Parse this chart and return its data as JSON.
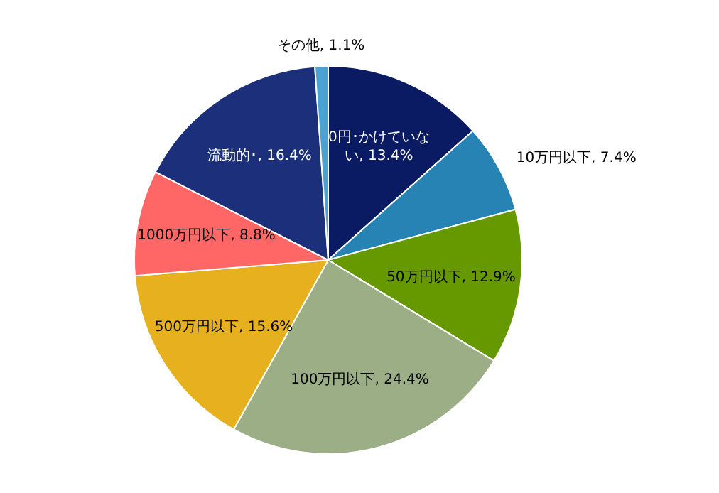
{
  "chart_data": {
    "type": "pie",
    "categories": [
      "0円･かけていない",
      "10万円以下",
      "50万円以下",
      "100万円以下",
      "500万円以下",
      "1000万円以下",
      "流動的･",
      "その他"
    ],
    "values": [
      13.4,
      7.4,
      12.9,
      24.4,
      15.6,
      8.8,
      16.4,
      1.1
    ],
    "value_labels": [
      "13.4%",
      "7.4%",
      "12.9%",
      "24.4%",
      "15.6%",
      "8.8%",
      "16.4%",
      "1.1%"
    ],
    "colors": [
      "#0b1b63",
      "#2683b4",
      "#669900",
      "#9bae86",
      "#e6b01e",
      "#ff6666",
      "#1b2f7a",
      "#4ba3d3"
    ],
    "legend": false
  }
}
